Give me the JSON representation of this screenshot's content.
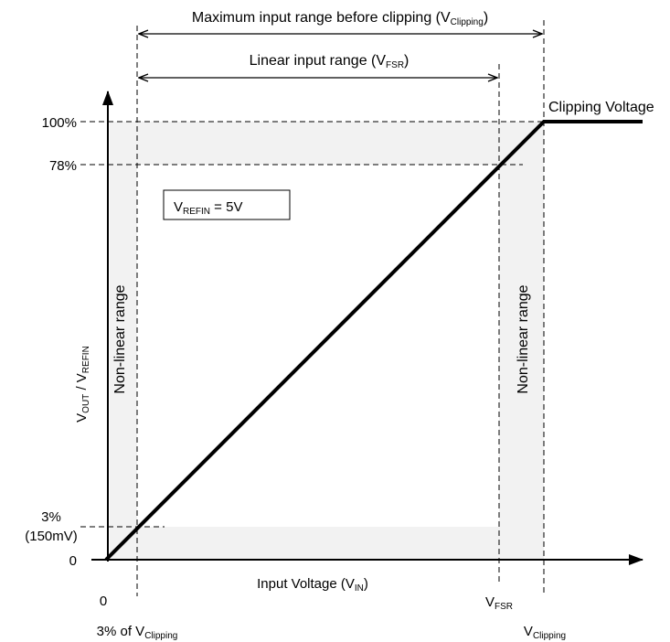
{
  "colors": {
    "shade": "#f2f2f2",
    "line": "#000000"
  },
  "top_range": {
    "max_label_main": "Maximum input range before clipping (V",
    "max_label_sub": "Clipping",
    "max_label_end": ")",
    "linear_label_main": "Linear input range (V",
    "linear_label_sub": "FSR",
    "linear_label_end": ")"
  },
  "y_ticks": {
    "t100": "100%",
    "t78": "78%",
    "t3": "3%",
    "t3_sub": "(150mV)",
    "t0": "0"
  },
  "x_ticks": {
    "x0": "0",
    "x3_main": "3% of V",
    "x3_sub": "Clipping",
    "xfsr_main": "V",
    "xfsr_sub": "FSR",
    "xclip_main": "V",
    "xclip_sub": "Clipping"
  },
  "axes": {
    "x_label_main": "Input Voltage (V",
    "x_label_sub": "IN",
    "x_label_end": ")",
    "y_label_a": "V",
    "y_label_a_sub": "OUT",
    "y_label_mid": " / V",
    "y_label_b_sub": "REFIN"
  },
  "annotations": {
    "clipping_voltage": "Clipping Voltage",
    "refin_main": "V",
    "refin_sub": "REFIN",
    "refin_value": " = 5V",
    "nonlinear_left": "Non-linear range",
    "nonlinear_right": "Non-linear range"
  }
}
